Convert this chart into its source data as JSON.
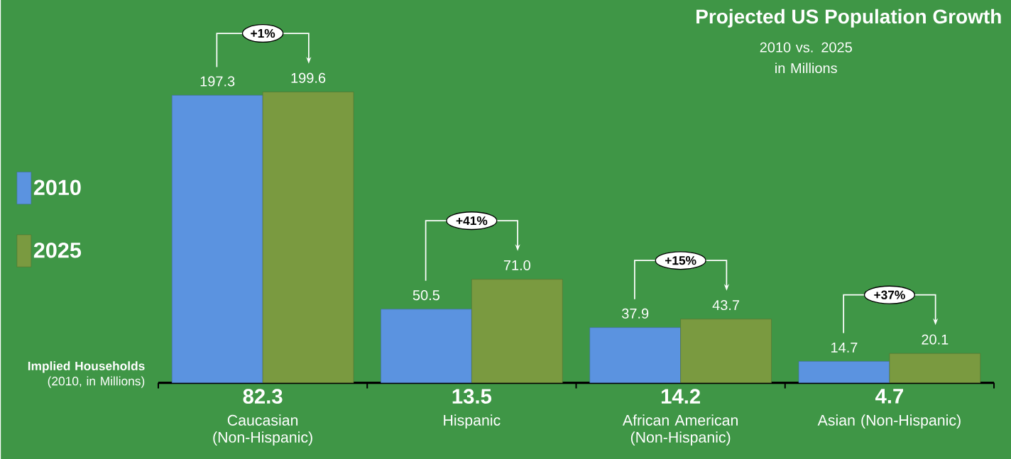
{
  "chart_data": {
    "type": "bar",
    "title": "Projected US Population Growth",
    "subtitle": "2010 vs. 2025 in Millions",
    "categories": [
      "Caucasian (Non-Hispanic)",
      "Hispanic",
      "African American (Non-Hispanic)",
      "Asian (Non-Hispanic)"
    ],
    "series": [
      {
        "name": "2010",
        "color": "#5b93e0",
        "values": [
          197.3,
          50.5,
          37.9,
          14.7
        ],
        "value_labels": [
          "197.3",
          "50.5",
          "37.9",
          "14.7"
        ]
      },
      {
        "name": "2025",
        "color": "#7a9a40",
        "values": [
          199.6,
          71.0,
          43.7,
          20.1
        ],
        "value_labels": [
          "199.6",
          "71.0",
          "43.7",
          "20.1"
        ]
      }
    ],
    "legend": "left",
    "annotations": [
      "**Implied Households** (2010, in Millions)",
      "82.3",
      "13.5",
      "14.2",
      "4.7",
      "+1%",
      "+41%",
      "+15%",
      "+37%"
    ]
  }
}
